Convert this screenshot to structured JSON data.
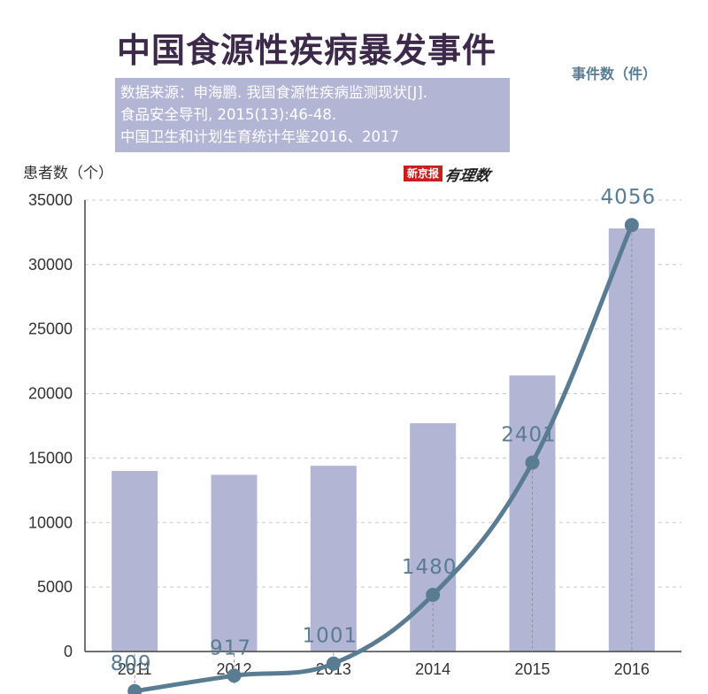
{
  "title": "中国食源性疾病暴发事件",
  "source": {
    "lines": [
      "数据来源：申海鹏. 我国食源性疾病监测现状[J].",
      "食品安全导刊, 2015(13):46-48.",
      "中国卫生和计划生育统计年鉴2016、2017"
    ]
  },
  "logo": {
    "text_red": "新京报",
    "text_script": "有理数"
  },
  "colors": {
    "bar": "#b3b5d5",
    "line": "#5a7c93",
    "title": "#3d2a4b",
    "grid": "#c8c8c8"
  },
  "chart_data": {
    "type": "bar+line",
    "categories": [
      "2011",
      "2012",
      "2013",
      "2014",
      "2015",
      "2016"
    ],
    "ylabel": "患者数（个）",
    "ylim": [
      0,
      35000
    ],
    "yticks": [
      "0",
      "5000",
      "10000",
      "15000",
      "20000",
      "25000",
      "30000",
      "35000"
    ],
    "grid": true,
    "series": [
      {
        "name": "患者数（个）",
        "type": "bar",
        "axis": "left",
        "values": [
          14000,
          13700,
          14400,
          17700,
          21400,
          32800
        ]
      },
      {
        "name": "事件数（件）",
        "type": "line",
        "axis": "right",
        "values": [
          809,
          917,
          1001,
          1480,
          2401,
          4056
        ],
        "labels": [
          "809",
          "917",
          "1001",
          "1480",
          "2401",
          "4056"
        ]
      }
    ]
  }
}
